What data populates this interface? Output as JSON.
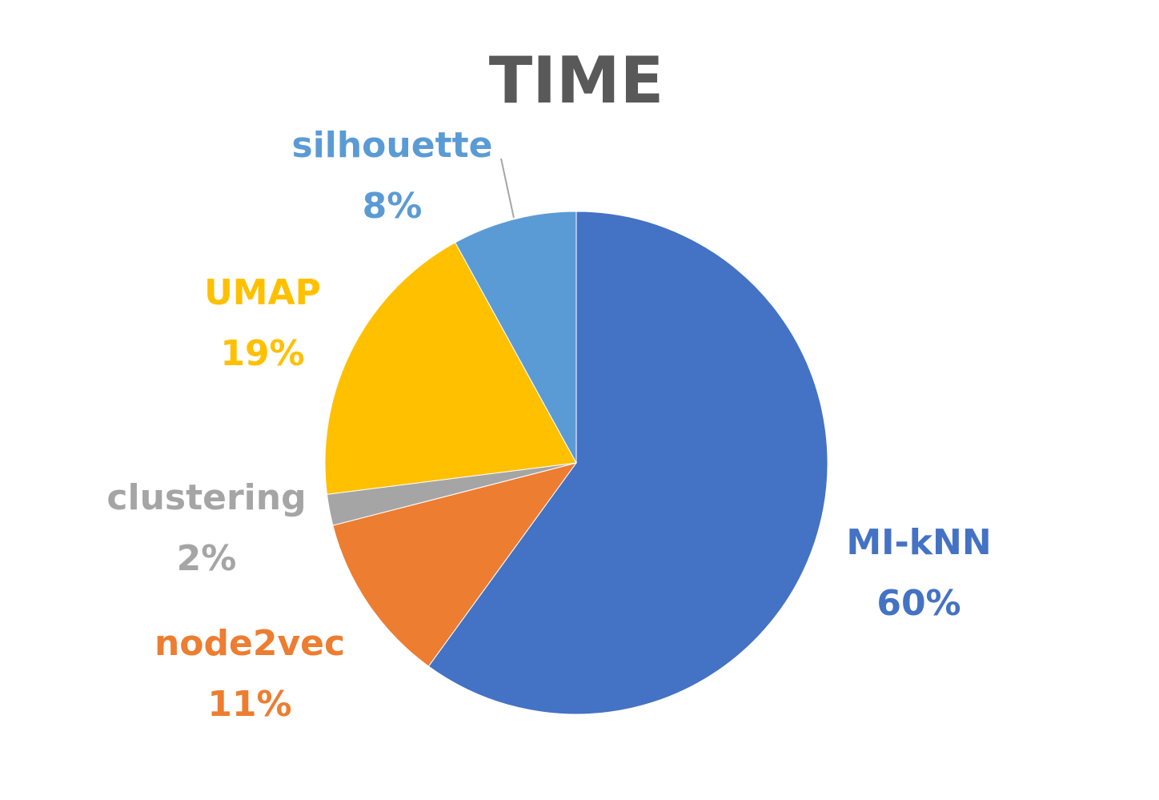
{
  "chart_data": {
    "type": "pie",
    "title": "TIME",
    "slices": [
      {
        "label": "MI-kNN",
        "value": 60,
        "value_label": "60%",
        "color": "#4472C4"
      },
      {
        "label": "node2vec",
        "value": 11,
        "value_label": "11%",
        "color": "#ED7D31"
      },
      {
        "label": "clustering",
        "value": 2,
        "value_label": "2%",
        "color": "#A5A5A5"
      },
      {
        "label": "UMAP",
        "value": 19,
        "value_label": "19%",
        "color": "#FFC000"
      },
      {
        "label": "silhouette",
        "value": 8,
        "value_label": "8%",
        "color": "#5B9BD5"
      }
    ],
    "start_angle": "12 o'clock",
    "direction": "clockwise",
    "legend": "none",
    "data_labels": "outside"
  }
}
